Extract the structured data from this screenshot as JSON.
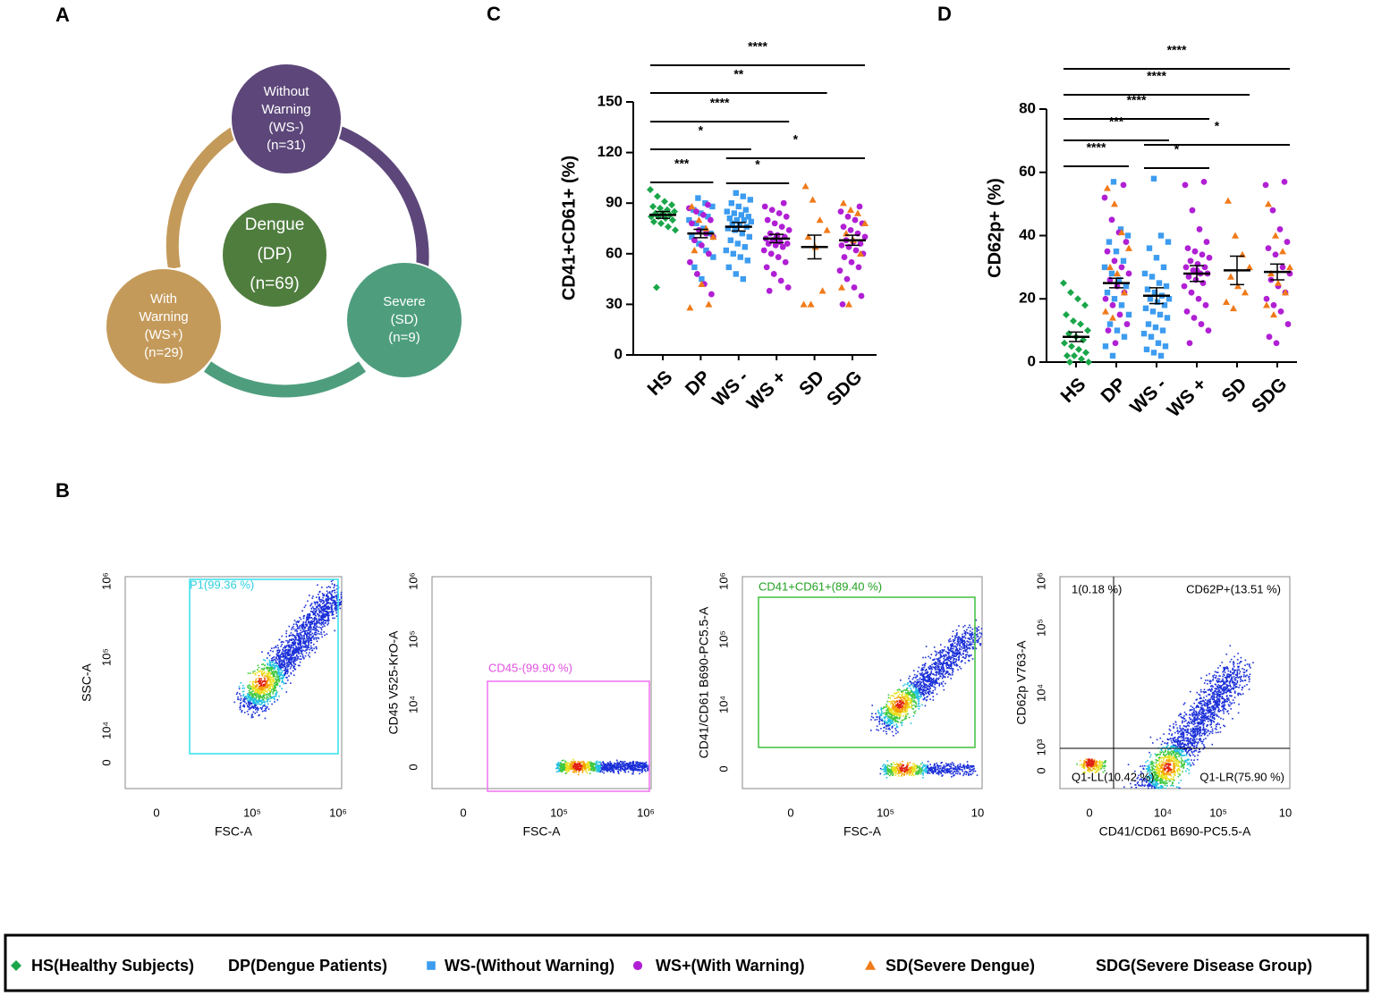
{
  "panel_labels": [
    "A",
    "B",
    "C",
    "D"
  ],
  "panel_a": {
    "nodes": [
      {
        "lines": [
          "Without",
          "Warning",
          "(WS-)",
          "(n=31)"
        ]
      },
      {
        "lines": [
          "With",
          "Warning",
          "(WS+)",
          "(n=29)"
        ]
      },
      {
        "lines": [
          "Severe",
          "(SD)",
          "(n=9)"
        ]
      },
      {
        "lines": [
          "Dengue",
          "(DP)",
          "(n=69)"
        ]
      }
    ]
  },
  "chart_data": [
    {
      "type": "dot",
      "y_label": "CD41+CD61+ (%)",
      "categories": [
        "HS",
        "DP",
        "WS -",
        "WS +",
        "SD",
        "SDG"
      ],
      "ylim": [
        0,
        150
      ],
      "yticks": [
        0,
        30,
        60,
        90,
        120,
        150
      ],
      "means": [
        83,
        72,
        76,
        69,
        64,
        68
      ],
      "sems": [
        2,
        2.5,
        2.5,
        2.5,
        7,
        3
      ],
      "series": [
        {
          "color": "#1aa64a",
          "marker": "diamond",
          "values": [
            [
              98,
              94,
              91,
              89,
              88,
              87,
              86,
              85,
              84,
              84,
              83,
              82,
              82,
              81,
              80,
              79,
              78,
              76,
              74,
              40
            ],
            [],
            [],
            [],
            [],
            []
          ]
        },
        {
          "color": "#3d9cf0",
          "marker": "square",
          "values": [
            [],
            [
              93,
              90,
              88,
              86,
              84,
              82,
              80,
              78,
              75,
              72,
              70,
              66,
              62,
              58,
              52,
              45
            ],
            [
              96,
              94,
              92,
              90,
              88,
              86,
              85,
              84,
              83,
              82,
              81,
              80,
              80,
              79,
              78,
              77,
              76,
              75,
              74,
              72,
              70,
              68,
              66,
              64,
              62,
              60,
              58,
              56,
              52,
              48,
              45
            ],
            [],
            [],
            []
          ]
        },
        {
          "color": "#b01fd4",
          "marker": "circle",
          "values": [
            [],
            [
              89,
              87,
              85,
              83,
              80,
              78,
              74,
              72,
              70,
              68,
              65,
              60,
              55,
              48,
              42,
              36
            ],
            [],
            [
              90,
              88,
              86,
              84,
              82,
              80,
              78,
              76,
              74,
              72,
              71,
              70,
              69,
              68,
              67,
              66,
              66,
              65,
              64,
              62,
              60,
              58,
              55,
              52,
              48,
              44,
              40,
              38,
              70
            ],
            [],
            [
              88,
              85,
              82,
              80,
              78,
              76,
              74,
              72,
              70,
              68,
              67,
              66,
              65,
              64,
              62,
              60,
              58,
              55,
              52,
              50,
              45,
              40,
              35,
              30
            ]
          ]
        },
        {
          "color": "#f07a1a",
          "marker": "triangle",
          "values": [
            [],
            [
              88,
              80,
              75,
              70,
              62,
              42,
              30,
              28
            ],
            [],
            [],
            [
              100,
              92,
              80,
              74,
              70,
              64,
              38,
              30,
              30
            ],
            [
              90,
              86,
              84,
              78,
              72,
              68,
              60,
              40,
              30
            ]
          ]
        }
      ],
      "brackets": [
        {
          "from": "HS",
          "to": "SDG",
          "label": "****"
        },
        {
          "from": "HS",
          "to": "SD",
          "label": "**"
        },
        {
          "from": "HS",
          "to": "WS +",
          "label": "****"
        },
        {
          "from": "HS",
          "to": "WS -",
          "label": "*"
        },
        {
          "from": "WS -",
          "to": "SDG",
          "label": "*"
        },
        {
          "from": "WS -",
          "to": "WS +",
          "label": "*"
        },
        {
          "from": "HS",
          "to": "DP",
          "label": "***"
        }
      ]
    },
    {
      "type": "dot",
      "y_label": "CD62p+ (%)",
      "categories": [
        "HS",
        "DP",
        "WS -",
        "WS +",
        "SD",
        "SDG"
      ],
      "ylim": [
        0,
        80
      ],
      "yticks": [
        0,
        20,
        40,
        60,
        80
      ],
      "means": [
        8,
        25,
        21,
        28,
        29,
        28.5
      ],
      "sems": [
        1.5,
        1.5,
        2.5,
        2.5,
        4.5,
        2.5
      ],
      "series": [
        {
          "color": "#1aa64a",
          "marker": "diamond",
          "values": [
            [
              25,
              22,
              20,
              18,
              15,
              13,
              12,
              10,
              9,
              8,
              7,
              6,
              5,
              4,
              3,
              2,
              2,
              1,
              0,
              0
            ],
            [],
            [],
            [],
            [],
            []
          ]
        },
        {
          "color": "#3d9cf0",
          "marker": "square",
          "values": [
            [],
            [
              57,
              42,
              40,
              38,
              35,
              32,
              30,
              28,
              26,
              24,
              22,
              20,
              18,
              15,
              12,
              10,
              8,
              5,
              2
            ],
            [
              58,
              40,
              38,
              36,
              33,
              30,
              28,
              27,
              25,
              24,
              23,
              22,
              21,
              20,
              20,
              19,
              18,
              17,
              16,
              15,
              14,
              12,
              11,
              10,
              9,
              8,
              6,
              5,
              4,
              3,
              2
            ],
            [],
            [],
            []
          ]
        },
        {
          "color": "#b01fd4",
          "marker": "circle",
          "values": [
            [],
            [
              56,
              52,
              45,
              41,
              38,
              35,
              32,
              30,
              28,
              26,
              24,
              22,
              20,
              18,
              15,
              12,
              10,
              6
            ],
            [],
            [
              57,
              56,
              48,
              42,
              38,
              36,
              35,
              34,
              33,
              32,
              31,
              30,
              30,
              29,
              28,
              28,
              27,
              26,
              25,
              24,
              22,
              20,
              18,
              16,
              14,
              12,
              10,
              6,
              29
            ],
            [],
            [
              57,
              56,
              48,
              42,
              38,
              36,
              34,
              30,
              28,
              26,
              24,
              22,
              20,
              18,
              16,
              12,
              8,
              6
            ]
          ]
        },
        {
          "color": "#f07a1a",
          "marker": "triangle",
          "values": [
            [],
            [
              55,
              50,
              41,
              36,
              30,
              28,
              22,
              16,
              14
            ],
            [],
            [],
            [
              51,
              40,
              34,
              30,
              27,
              24,
              22,
              19,
              17
            ],
            [
              50,
              40,
              35,
              30,
              28,
              25,
              22,
              18,
              15
            ]
          ]
        }
      ],
      "brackets": [
        {
          "from": "HS",
          "to": "SDG",
          "label": "****"
        },
        {
          "from": "HS",
          "to": "SD",
          "label": "****"
        },
        {
          "from": "HS",
          "to": "WS +",
          "label": "****"
        },
        {
          "from": "HS",
          "to": "WS -",
          "label": "***"
        },
        {
          "from": "HS",
          "to": "DP",
          "label": "****"
        },
        {
          "from": "WS -",
          "to": "SDG",
          "label": "*"
        },
        {
          "from": "WS -",
          "to": "WS +",
          "label": "*"
        }
      ]
    }
  ],
  "flow_plots": [
    {
      "x_label": "FSC-A",
      "y_label": "SSC-A",
      "x_tick_labels": [
        "0",
        "10⁵",
        "10⁶"
      ],
      "y_tick_labels": [
        "10⁶",
        "10⁵",
        "10⁴",
        "0"
      ],
      "gates": [
        "P1(99.36 %)"
      ]
    },
    {
      "x_label": "FSC-A",
      "y_label": "CD45 V525-KrO-A",
      "x_tick_labels": [
        "0",
        "10⁵",
        "10⁶"
      ],
      "y_tick_labels": [
        "10⁶",
        "10⁵",
        "10⁴",
        "0"
      ],
      "gates": [
        "CD45-(99.90 %)"
      ]
    },
    {
      "x_label": "FSC-A",
      "y_label": "CD41/CD61 B690-PC5.5-A",
      "x_tick_labels": [
        "0",
        "10⁵",
        "10"
      ],
      "y_tick_labels": [
        "10⁶",
        "10⁵",
        "10⁴",
        "0"
      ],
      "gates": [
        "CD41+CD61+(89.40 %)"
      ]
    },
    {
      "x_label": "CD41/CD61 B690-PC5.5-A",
      "y_label": "CD62p V763-A",
      "x_tick_labels": [
        "0",
        "10⁴",
        "10⁵",
        "10"
      ],
      "y_tick_labels": [
        "10⁶",
        "10⁵",
        "10⁴",
        "10³",
        "0"
      ],
      "gates": [
        "1(0.18 %)",
        "CD62P+(13.51 %)",
        "Q1-LL(10.42 %)",
        "Q1-LR(75.90 %)"
      ]
    }
  ],
  "legend": [
    {
      "label": "HS(Healthy Subjects)",
      "marker": "diamond",
      "color": "#1aa64a"
    },
    {
      "label": "DP(Dengue Patients)"
    },
    {
      "label": "WS-(Without Warning)",
      "marker": "square",
      "color": "#3d9cf0"
    },
    {
      "label": "WS+(With Warning)",
      "marker": "circle",
      "color": "#b01fd4"
    },
    {
      "label": "SD(Severe Dengue)",
      "marker": "triangle",
      "color": "#f07a1a"
    },
    {
      "label": "SDG(Severe Disease Group)"
    }
  ]
}
